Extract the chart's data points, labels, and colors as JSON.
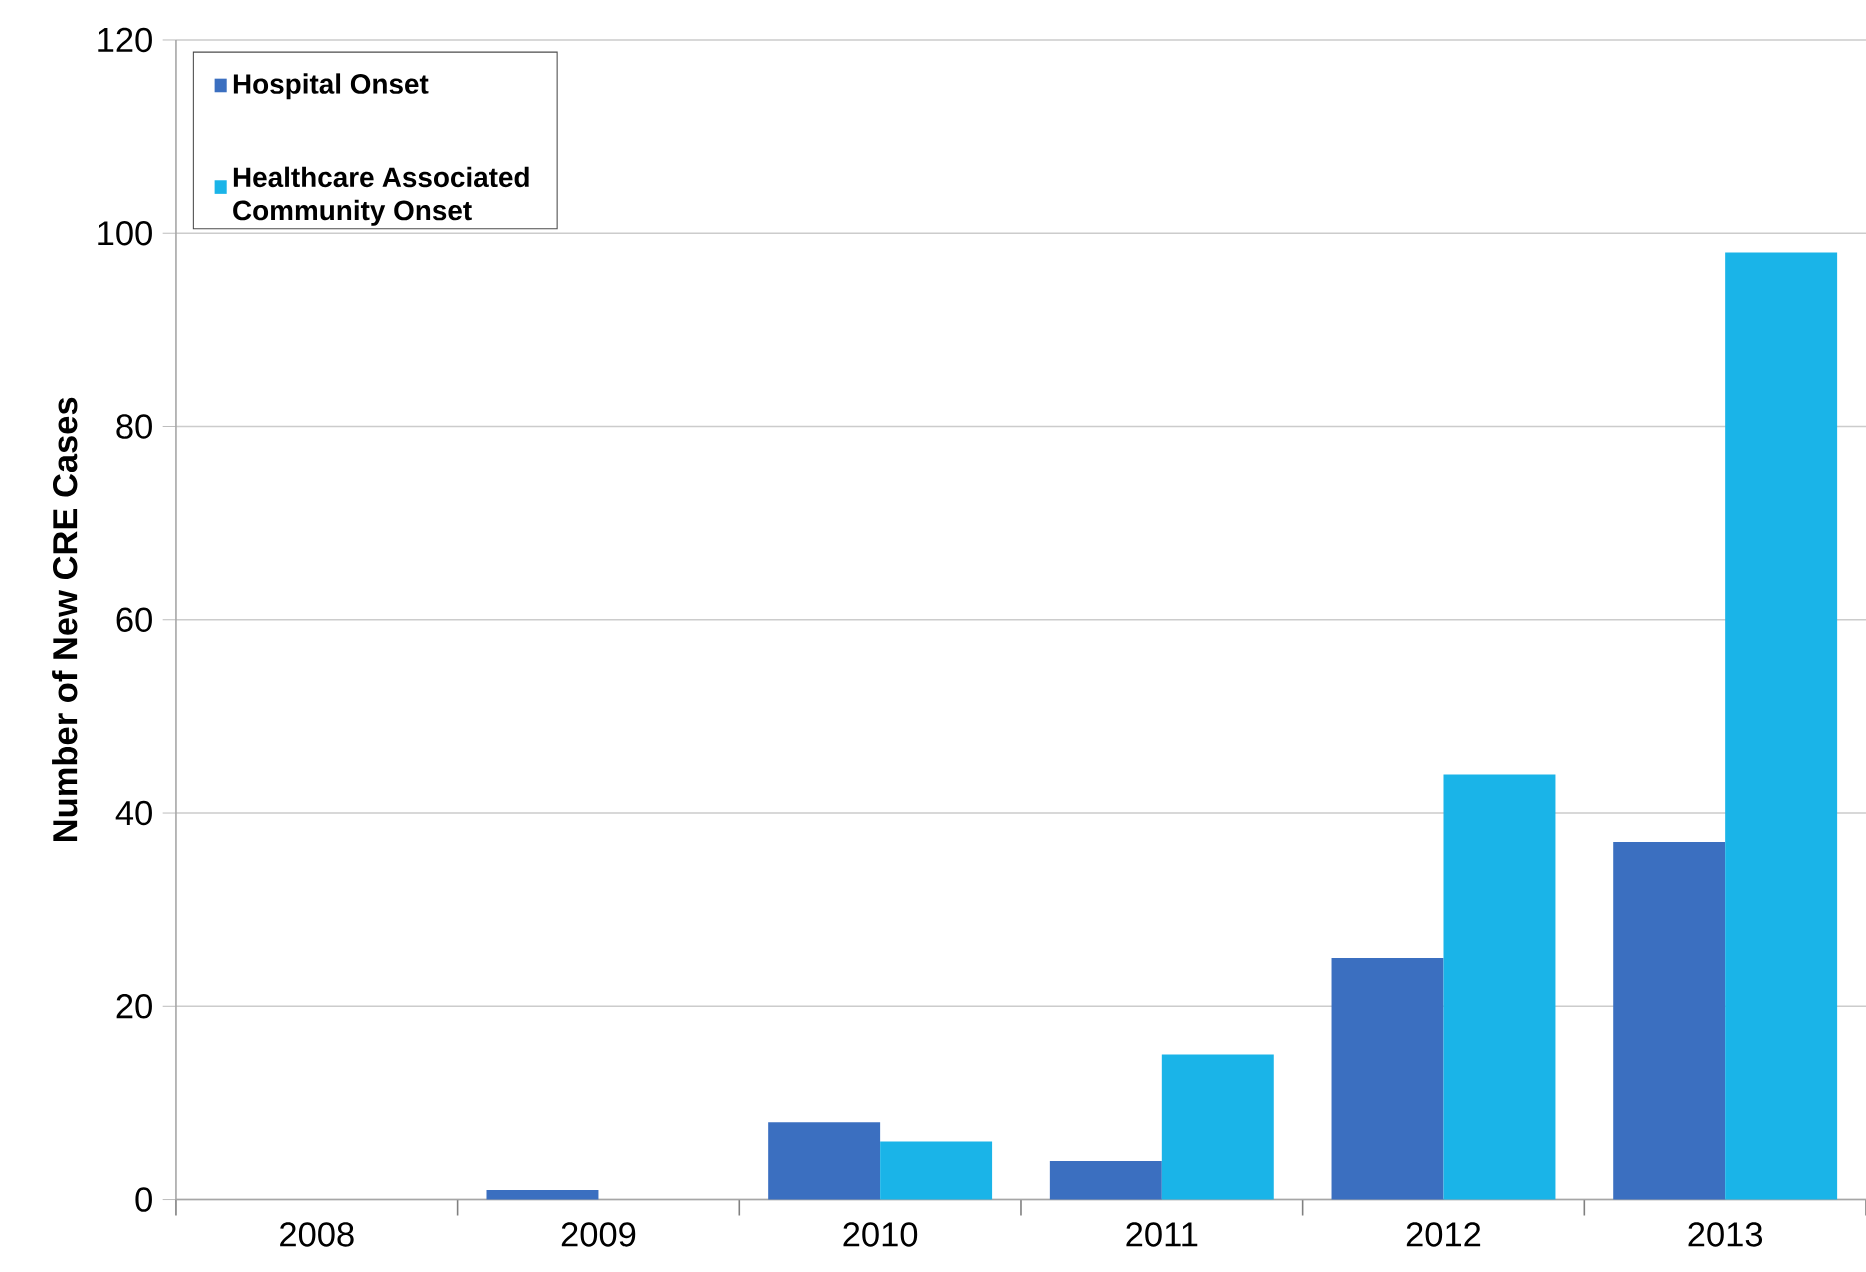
{
  "chart_data": {
    "type": "bar",
    "ylabel": "Number of New CRE Cases",
    "categories": [
      "2008",
      "2009",
      "2010",
      "2011",
      "2012",
      "2013"
    ],
    "series": [
      {
        "name": "Hospital Onset",
        "color": "#3b6fc0",
        "values": [
          0,
          1,
          8,
          4,
          25,
          37
        ]
      },
      {
        "name": "Healthcare Associated Community Onset",
        "color": "#1ab4e8",
        "values": [
          0,
          0,
          6,
          15,
          44,
          98
        ]
      }
    ],
    "ylim": [
      0,
      120
    ],
    "yticks": [
      0,
      20,
      40,
      60,
      80,
      100,
      120
    ],
    "grid": "y",
    "legend": "top left"
  }
}
